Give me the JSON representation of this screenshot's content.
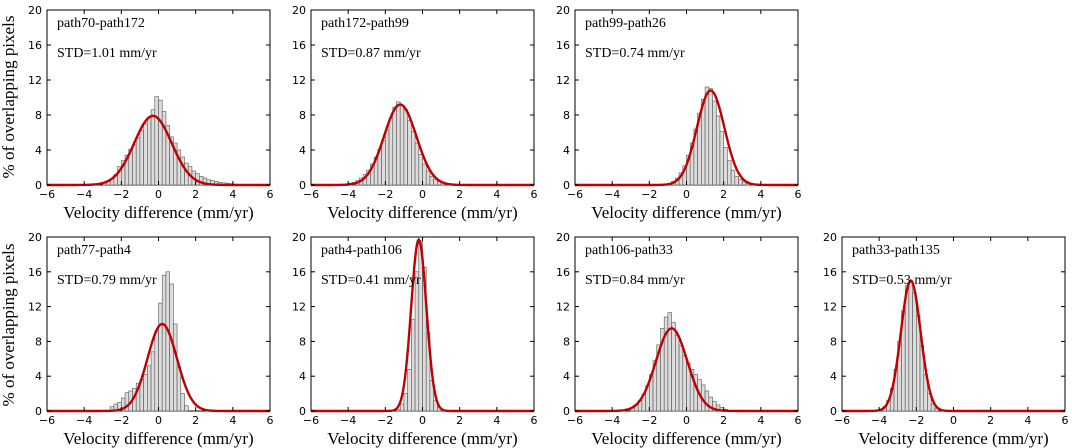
{
  "figure": {
    "ylabel": "% of overlapping pixels",
    "xlabel": "Velocity difference (mm/yr)",
    "colors": {
      "bar_fill": "#dcdcdc",
      "bar_stroke": "#555555",
      "curve": "#c00000",
      "frame": "#000000"
    }
  },
  "chart_data": [
    {
      "type": "bar",
      "title": "path70-path172",
      "annotation": "STD=1.01 mm/yr",
      "xlabel": "Velocity difference (mm/yr)",
      "ylabel": "% of overlapping pixels",
      "xlim": [
        -6,
        6
      ],
      "ylim": [
        0,
        20
      ],
      "xticks": [
        "−6",
        "−4",
        "−2",
        "0",
        "2",
        "4",
        "6"
      ],
      "yticks": [
        "0",
        "4",
        "8",
        "12",
        "16",
        "20"
      ],
      "bins_x": [
        -2.9,
        -2.7,
        -2.5,
        -2.3,
        -2.1,
        -1.9,
        -1.7,
        -1.5,
        -1.3,
        -1.1,
        -0.9,
        -0.7,
        -0.5,
        -0.3,
        -0.1,
        0.1,
        0.3,
        0.5,
        0.7,
        0.9,
        1.1,
        1.3,
        1.5,
        1.7,
        1.9,
        2.1,
        2.3,
        2.5,
        2.7,
        2.9,
        3.1,
        3.3,
        3.5,
        3.7,
        3.9,
        4.1
      ],
      "values": [
        0.2,
        0.4,
        0.7,
        1.2,
        2.1,
        2.8,
        3.4,
        4.1,
        4.6,
        5.4,
        6.2,
        7.0,
        7.7,
        8.6,
        10.1,
        9.7,
        8.4,
        6.8,
        5.5,
        4.8,
        4.0,
        3.2,
        2.5,
        2.1,
        1.6,
        1.3,
        1.0,
        0.8,
        0.6,
        0.5,
        0.4,
        0.3,
        0.25,
        0.2,
        0.15,
        0.1
      ],
      "fit": {
        "mean": -0.3,
        "peak": 7.9,
        "sigma": 1.01
      }
    },
    {
      "type": "bar",
      "title": "path172-path99",
      "annotation": "STD=0.87 mm/yr",
      "xlabel": "Velocity difference (mm/yr)",
      "ylabel": "% of overlapping pixels",
      "xlim": [
        -6,
        6
      ],
      "ylim": [
        0,
        20
      ],
      "xticks": [
        "−6",
        "−4",
        "−2",
        "0",
        "2",
        "4",
        "6"
      ],
      "yticks": [
        "0",
        "4",
        "8",
        "12",
        "16",
        "20"
      ],
      "bins_x": [
        -3.9,
        -3.7,
        -3.5,
        -3.3,
        -3.1,
        -2.9,
        -2.7,
        -2.5,
        -2.3,
        -2.1,
        -1.9,
        -1.7,
        -1.5,
        -1.3,
        -1.1,
        -0.9,
        -0.7,
        -0.5,
        -0.3,
        -0.1,
        0.1,
        0.3,
        0.5,
        0.7,
        0.9,
        1.1,
        1.3,
        1.5
      ],
      "values": [
        0.2,
        0.3,
        0.5,
        0.8,
        1.2,
        1.7,
        2.4,
        3.2,
        4.1,
        5.1,
        6.3,
        7.6,
        8.9,
        9.5,
        9.1,
        8.6,
        7.4,
        6.1,
        4.8,
        3.5,
        2.4,
        1.6,
        1.0,
        0.6,
        0.4,
        0.25,
        0.15,
        0.1
      ],
      "fit": {
        "mean": -1.2,
        "peak": 9.2,
        "sigma": 0.87
      }
    },
    {
      "type": "bar",
      "title": "path99-path26",
      "annotation": "STD=0.74 mm/yr",
      "xlabel": "Velocity difference (mm/yr)",
      "ylabel": "% of overlapping pixels",
      "xlim": [
        -6,
        6
      ],
      "ylim": [
        0,
        20
      ],
      "xticks": [
        "−6",
        "−4",
        "−2",
        "0",
        "2",
        "4",
        "6"
      ],
      "yticks": [
        "0",
        "4",
        "8",
        "12",
        "16",
        "20"
      ],
      "bins_x": [
        -0.9,
        -0.7,
        -0.5,
        -0.3,
        -0.1,
        0.1,
        0.3,
        0.5,
        0.7,
        0.9,
        1.1,
        1.3,
        1.5,
        1.7,
        1.9,
        2.1,
        2.3,
        2.5,
        2.7,
        2.9,
        3.1,
        3.3,
        3.5
      ],
      "values": [
        0.2,
        0.4,
        0.8,
        1.4,
        2.2,
        3.4,
        4.8,
        6.4,
        8.2,
        9.8,
        11.2,
        11.0,
        9.6,
        7.9,
        6.1,
        4.3,
        2.8,
        1.7,
        1.0,
        0.6,
        0.35,
        0.2,
        0.1
      ],
      "fit": {
        "mean": 1.3,
        "peak": 10.8,
        "sigma": 0.74
      }
    },
    {
      "type": "bar",
      "title": "path77-path4",
      "annotation": "STD=0.79 mm/yr",
      "xlabel": "Velocity difference (mm/yr)",
      "ylabel": "% of overlapping pixels",
      "xlim": [
        -6,
        6
      ],
      "ylim": [
        0,
        20
      ],
      "xticks": [
        "−6",
        "−4",
        "−2",
        "0",
        "2",
        "4",
        "6"
      ],
      "yticks": [
        "0",
        "4",
        "8",
        "12",
        "16",
        "20"
      ],
      "bins_x": [
        -2.5,
        -2.3,
        -2.1,
        -1.9,
        -1.7,
        -1.5,
        -1.3,
        -1.1,
        -0.9,
        -0.7,
        -0.5,
        -0.3,
        -0.1,
        0.1,
        0.3,
        0.5,
        0.7,
        0.9,
        1.1,
        1.3,
        1.5
      ],
      "values": [
        0.5,
        0.8,
        1.0,
        1.5,
        2.1,
        2.3,
        2.6,
        3.2,
        3.6,
        4.2,
        5.2,
        6.8,
        9.2,
        12.4,
        15.6,
        16.0,
        14.6,
        10.0,
        5.1,
        2.0,
        0.6
      ],
      "fit": {
        "mean": 0.2,
        "peak": 10.0,
        "sigma": 0.79
      }
    },
    {
      "type": "bar",
      "title": "path4-path106",
      "annotation": "STD=0.41 mm/yr",
      "xlabel": "Velocity difference (mm/yr)",
      "ylabel": "% of overlapping pixels",
      "xlim": [
        -6,
        6
      ],
      "ylim": [
        0,
        20
      ],
      "xticks": [
        "−6",
        "−4",
        "−2",
        "0",
        "2",
        "4",
        "6"
      ],
      "yticks": [
        "0",
        "4",
        "8",
        "12",
        "16",
        "20"
      ],
      "bins_x": [
        -1.3,
        -1.1,
        -0.9,
        -0.7,
        -0.5,
        -0.3,
        -0.1,
        0.1,
        0.3,
        0.5,
        0.7,
        0.9,
        1.1
      ],
      "values": [
        0.2,
        0.8,
        2.0,
        4.8,
        10.5,
        16.0,
        19.5,
        16.5,
        9.0,
        3.5,
        1.2,
        0.4,
        0.1
      ],
      "fit": {
        "mean": -0.2,
        "peak": 19.7,
        "sigma": 0.41
      }
    },
    {
      "type": "bar",
      "title": "path106-path33",
      "annotation": "STD=0.84 mm/yr",
      "xlabel": "Velocity difference (mm/yr)",
      "ylabel": "% of overlapping pixels",
      "xlim": [
        -6,
        6
      ],
      "ylim": [
        0,
        20
      ],
      "xticks": [
        "−6",
        "−4",
        "−2",
        "0",
        "2",
        "4",
        "6"
      ],
      "yticks": [
        "0",
        "4",
        "8",
        "12",
        "16",
        "20"
      ],
      "bins_x": [
        -2.9,
        -2.7,
        -2.5,
        -2.3,
        -2.1,
        -1.9,
        -1.7,
        -1.5,
        -1.3,
        -1.1,
        -0.9,
        -0.7,
        -0.5,
        -0.3,
        -0.1,
        0.1,
        0.3,
        0.5,
        0.7,
        0.9,
        1.1,
        1.3,
        1.5,
        1.7,
        1.9,
        2.1
      ],
      "values": [
        0.4,
        0.7,
        1.2,
        1.9,
        2.9,
        4.2,
        5.8,
        7.6,
        9.5,
        10.8,
        11.3,
        10.2,
        8.7,
        7.5,
        6.4,
        5.5,
        4.8,
        4.2,
        3.6,
        3.0,
        2.3,
        1.6,
        1.1,
        0.7,
        0.4,
        0.2
      ],
      "fit": {
        "mean": -0.8,
        "peak": 9.5,
        "sigma": 0.84
      }
    },
    {
      "type": "bar",
      "title": "path33-path135",
      "annotation": "STD=0.53 mm/yr",
      "xlabel": "Velocity difference (mm/yr)",
      "ylabel": "% of overlapping pixels",
      "xlim": [
        -6,
        6
      ],
      "ylim": [
        0,
        20
      ],
      "xticks": [
        "−6",
        "−4",
        "−2",
        "0",
        "2",
        "4",
        "6"
      ],
      "yticks": [
        "0",
        "4",
        "8",
        "12",
        "16",
        "20"
      ],
      "bins_x": [
        -3.9,
        -3.7,
        -3.5,
        -3.3,
        -3.1,
        -2.9,
        -2.7,
        -2.5,
        -2.3,
        -2.1,
        -1.9,
        -1.7,
        -1.5,
        -1.3,
        -1.1,
        -0.9
      ],
      "values": [
        0.2,
        0.5,
        1.2,
        2.6,
        4.8,
        8.0,
        11.5,
        14.4,
        14.8,
        13.6,
        11.0,
        7.5,
        4.2,
        2.0,
        0.8,
        0.3
      ],
      "fit": {
        "mean": -2.3,
        "peak": 15.0,
        "sigma": 0.53
      }
    }
  ]
}
